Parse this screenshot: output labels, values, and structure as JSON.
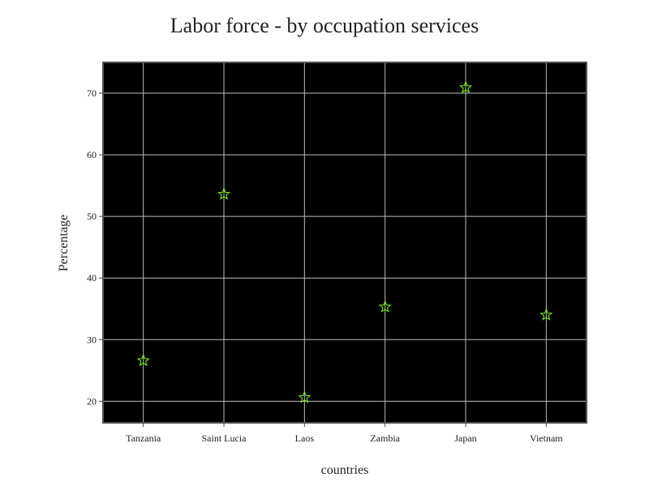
{
  "chart_data": {
    "type": "scatter",
    "title": "Labor force - by occupation services",
    "xlabel": "countries",
    "ylabel": "Percentage",
    "categories": [
      "Tanzania",
      "Saint Lucia",
      "Laos",
      "Zambia",
      "Japan",
      "Vietnam"
    ],
    "series": [
      {
        "values": [
          26.6,
          53.6,
          20.6,
          35.3,
          70.9,
          34.0
        ],
        "marker": "star",
        "color": "#7cfc00"
      }
    ],
    "ylim": [
      16.5,
      75
    ],
    "yticks": [
      20,
      30,
      40,
      50,
      60,
      70
    ],
    "grid": true,
    "background": "#000000",
    "legend": "none"
  }
}
